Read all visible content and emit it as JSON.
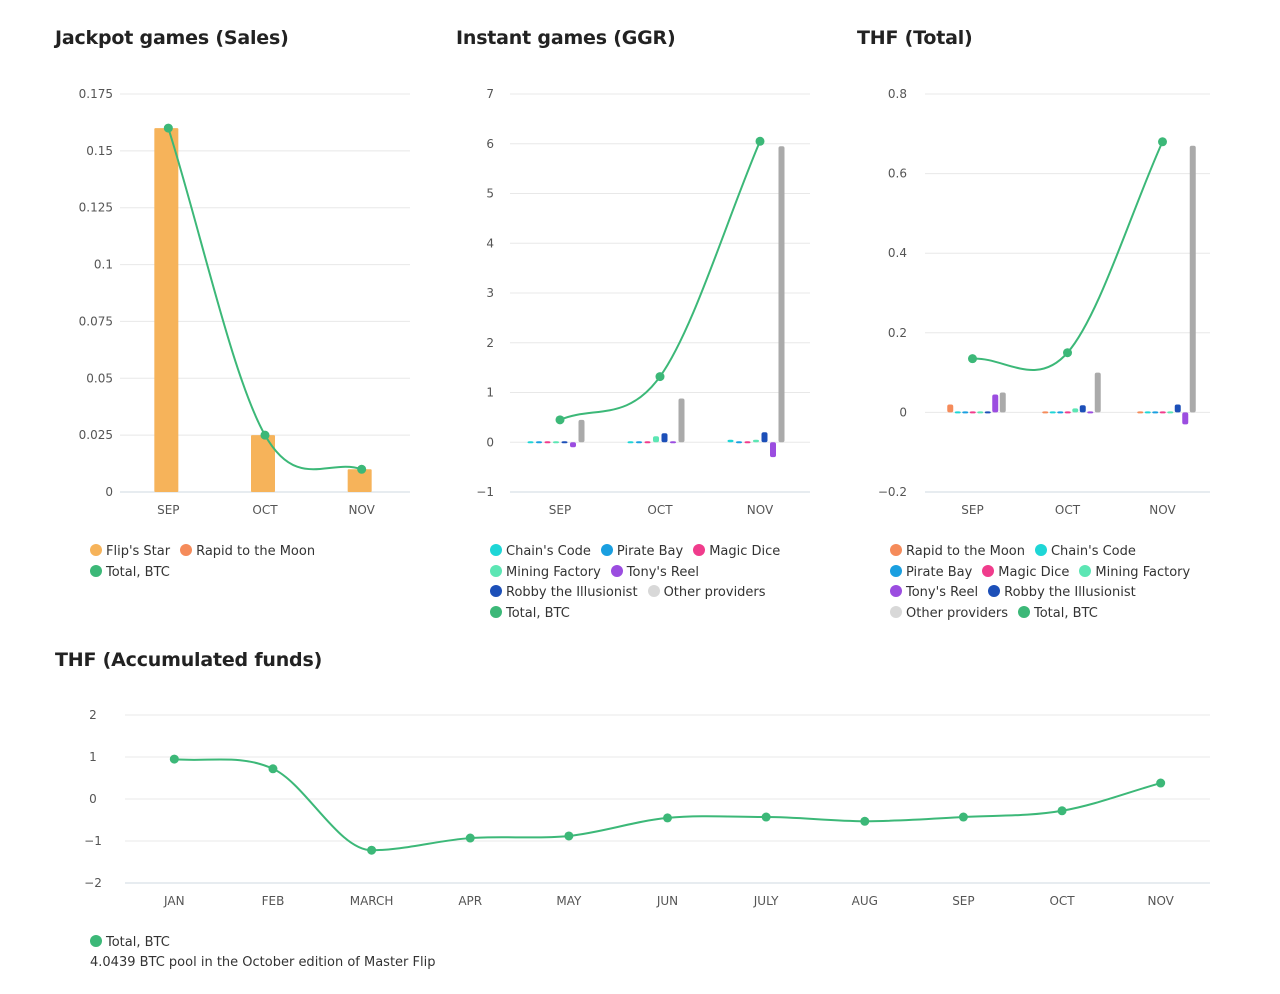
{
  "colors": {
    "Flip's Star": "#f6b35a",
    "Rapid to the Moon": "#f58b5a",
    "Chain's Code": "#1ed6d6",
    "Pirate Bay": "#1a9fe0",
    "Magic Dice": "#f03c8c",
    "Mining Factory": "#5ce6b4",
    "Tony's Reel": "#9b4de0",
    "Robby the Illusionist": "#1c4fb8",
    "Other providers": "#d8d8d8",
    "Other providers bar": "#aaaaaa",
    "Total, BTC": "#3cb878"
  },
  "chart_data": [
    {
      "id": "jackpot",
      "type": "bar+line",
      "title": "Jackpot games (Sales)",
      "categories": [
        "SEP",
        "OCT",
        "NOV"
      ],
      "ylim": [
        0,
        0.175
      ],
      "yticks": [
        "0",
        "0.025",
        "0.05",
        "0.075",
        "0.1",
        "0.125",
        "0.15",
        "0.175"
      ],
      "ytick_values": [
        0,
        0.025,
        0.05,
        0.075,
        0.1,
        0.125,
        0.15,
        0.175
      ],
      "grid": true,
      "series": [
        {
          "name": "Flip's Star",
          "values": [
            0.16,
            0.025,
            0.01
          ]
        },
        {
          "name": "Rapid to the Moon",
          "values": [
            0,
            0,
            0
          ]
        }
      ],
      "line": {
        "name": "Total, BTC",
        "values": [
          0.16,
          0.025,
          0.01
        ]
      },
      "legend": [
        "Flip's Star",
        "Rapid to the Moon",
        "Total, BTC"
      ]
    },
    {
      "id": "instant",
      "type": "bar+line",
      "title": "Instant games (GGR)",
      "categories": [
        "SEP",
        "OCT",
        "NOV"
      ],
      "ylim": [
        -1,
        7
      ],
      "yticks": [
        "−1",
        "0",
        "1",
        "2",
        "3",
        "4",
        "5",
        "6",
        "7"
      ],
      "ytick_values": [
        -1,
        0,
        1,
        2,
        3,
        4,
        5,
        6,
        7
      ],
      "grid": true,
      "series": [
        {
          "name": "Chain's Code",
          "values": [
            0.01,
            0,
            0.05
          ]
        },
        {
          "name": "Pirate Bay",
          "values": [
            0.01,
            0.01,
            0
          ]
        },
        {
          "name": "Magic Dice",
          "values": [
            0.01,
            0.01,
            0
          ]
        },
        {
          "name": "Mining Factory",
          "values": [
            0.01,
            0.12,
            0.05
          ]
        },
        {
          "name": "Robby the Illusionist",
          "values": [
            -0.02,
            0.18,
            0.2
          ]
        },
        {
          "name": "Tony's Reel",
          "values": [
            -0.1,
            0.02,
            -0.3
          ]
        },
        {
          "name": "Other providers",
          "values": [
            0.45,
            0.88,
            5.95
          ]
        }
      ],
      "line": {
        "name": "Total, BTC",
        "values": [
          0.45,
          1.32,
          6.05
        ]
      },
      "legend": [
        "Chain's Code",
        "Pirate Bay",
        "Magic Dice",
        "Mining Factory",
        "Tony's Reel",
        "Robby the Illusionist",
        "Other providers",
        "Total, BTC"
      ]
    },
    {
      "id": "thf",
      "type": "bar+line",
      "title": "THF (Total)",
      "categories": [
        "SEP",
        "OCT",
        "NOV"
      ],
      "ylim": [
        -0.2,
        0.8
      ],
      "yticks": [
        "−0.2",
        "0",
        "0.2",
        "0.4",
        "0.6",
        "0.8"
      ],
      "ytick_values": [
        -0.2,
        0,
        0.2,
        0.4,
        0.6,
        0.8
      ],
      "grid": true,
      "series": [
        {
          "name": "Rapid to the Moon",
          "values": [
            0.02,
            0.002,
            0
          ]
        },
        {
          "name": "Chain's Code",
          "values": [
            0.002,
            0,
            0.003
          ]
        },
        {
          "name": "Pirate Bay",
          "values": [
            0,
            0,
            0
          ]
        },
        {
          "name": "Magic Dice",
          "values": [
            0.002,
            0,
            0
          ]
        },
        {
          "name": "Mining Factory",
          "values": [
            0.002,
            0.01,
            0.003
          ]
        },
        {
          "name": "Robby the Illusionist",
          "values": [
            -0.003,
            0.018,
            0.02
          ]
        },
        {
          "name": "Tony's Reel",
          "values": [
            0.045,
            0.003,
            -0.03
          ]
        },
        {
          "name": "Other providers",
          "values": [
            0.05,
            0.1,
            0.67
          ]
        }
      ],
      "line": {
        "name": "Total, BTC",
        "values": [
          0.135,
          0.15,
          0.68
        ]
      },
      "legend": [
        "Rapid to the Moon",
        "Chain's Code",
        "Pirate Bay",
        "Magic Dice",
        "Mining Factory",
        "Tony's Reel",
        "Robby the Illusionist",
        "Other providers",
        "Total, BTC"
      ]
    },
    {
      "id": "accum",
      "type": "line",
      "title": "THF (Accumulated funds)",
      "categories": [
        "JAN",
        "FEB",
        "MARCH",
        "APR",
        "MAY",
        "JUN",
        "JULY",
        "AUG",
        "SEP",
        "OCT",
        "NOV"
      ],
      "ylim": [
        -2,
        2
      ],
      "yticks": [
        "−2",
        "−1",
        "0",
        "1",
        "2"
      ],
      "ytick_values": [
        -2,
        -1,
        0,
        1,
        2
      ],
      "grid": true,
      "series": [],
      "line": {
        "name": "Total, BTC",
        "values": [
          0.95,
          0.72,
          -1.22,
          -0.93,
          -0.88,
          -0.45,
          -0.43,
          -0.53,
          -0.43,
          -0.28,
          0.38
        ]
      },
      "legend": [
        "Total, BTC"
      ],
      "note": "4.0439 BTC pool in the October edition of Master Flip"
    }
  ]
}
